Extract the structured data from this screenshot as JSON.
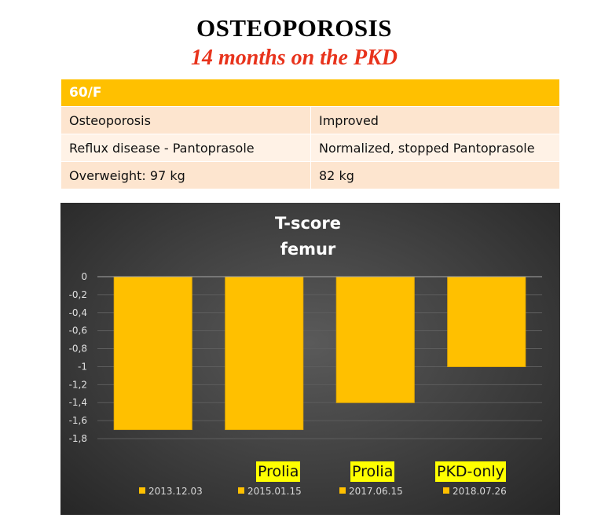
{
  "header": {
    "title": "OSTEOPOROSIS",
    "subtitle": "14 months on the PKD"
  },
  "table": {
    "header": "60/F",
    "rows": [
      {
        "left": "Osteoporosis",
        "right": "Improved"
      },
      {
        "left": "Reflux disease - Pantoprasole",
        "right": "Normalized, stopped Pantoprasole"
      },
      {
        "left": "Overweight: 97 kg",
        "right": "82 kg"
      }
    ]
  },
  "annotations": {
    "bar2": "Prolia",
    "bar3": "Prolia",
    "bar4": "PKD-only"
  },
  "chart_data": {
    "type": "bar",
    "title": "T-score femur",
    "title_lines": [
      "T-score",
      "femur"
    ],
    "categories": [
      "2013.12.03",
      "2015.01.15",
      "2017.06.15",
      "2018.07.26"
    ],
    "values": [
      -1.7,
      -1.7,
      -1.4,
      -1.0
    ],
    "ylim": [
      -1.8,
      0
    ],
    "yticks": [
      "0",
      "-0,2",
      "-0,4",
      "-0,6",
      "-0,8",
      "-1",
      "-1,2",
      "-1,4",
      "-1,6",
      "-1,8"
    ],
    "ytick_values": [
      0,
      -0.2,
      -0.4,
      -0.6,
      -0.8,
      -1.0,
      -1.2,
      -1.4,
      -1.6,
      -1.8
    ],
    "legend_position": "bottom",
    "grid": true,
    "colors": {
      "bar": "#ffc000",
      "grid": "#5d5d5d",
      "axis": "#a6a6a6"
    }
  }
}
